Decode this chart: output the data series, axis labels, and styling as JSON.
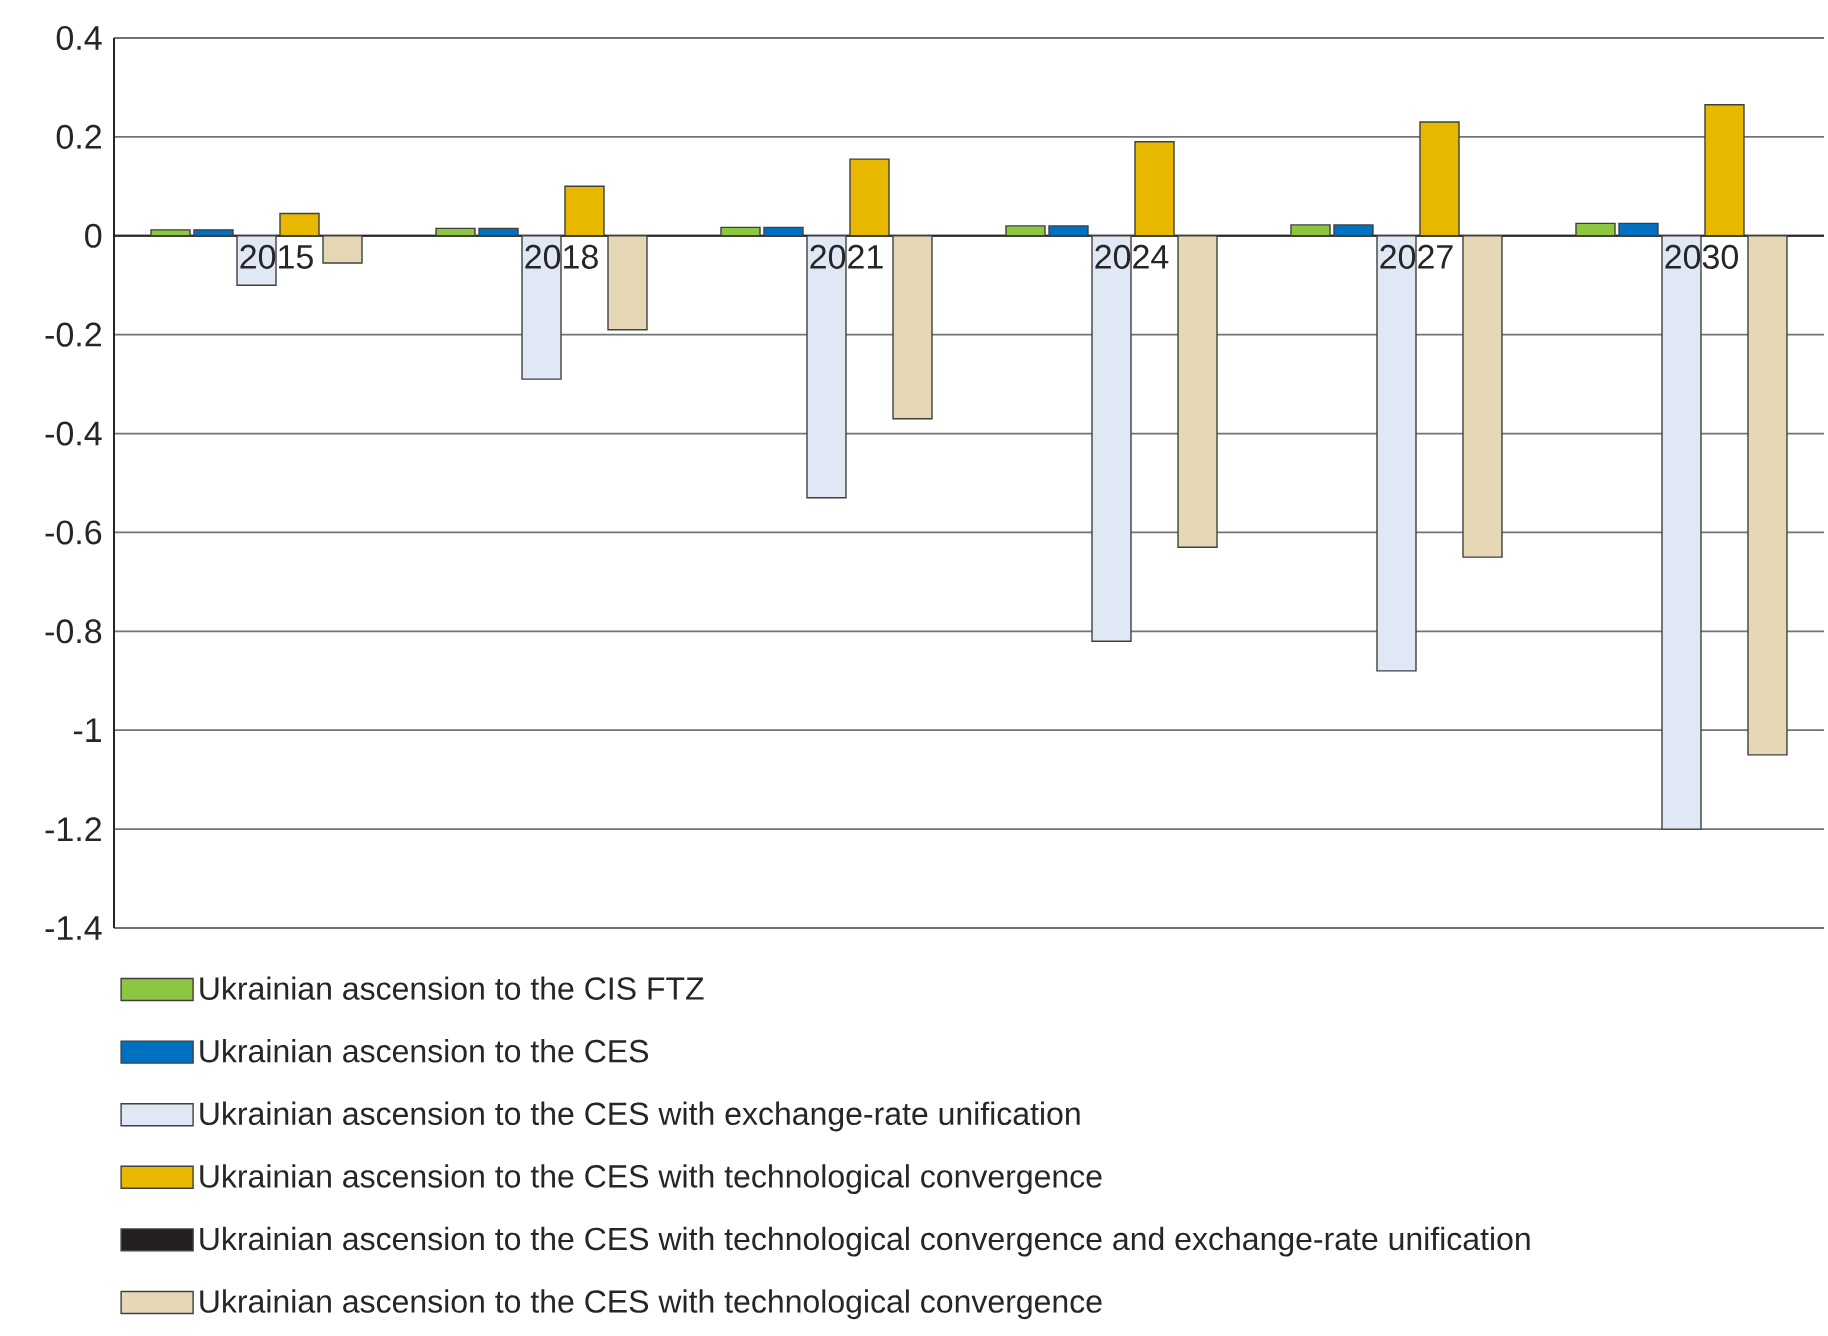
{
  "chart_data": {
    "type": "bar",
    "categories": [
      "2015",
      "2018",
      "2021",
      "2024",
      "2027",
      "2030"
    ],
    "series": [
      {
        "name": "Ukrainian ascension to the CIS FTZ",
        "color": "#8dc63f",
        "values": [
          0.012,
          0.015,
          0.017,
          0.02,
          0.022,
          0.025
        ]
      },
      {
        "name": "Ukrainian ascension to the CES",
        "color": "#0070c0",
        "values": [
          0.012,
          0.015,
          0.017,
          0.02,
          0.022,
          0.025
        ]
      },
      {
        "name": "Ukrainian ascension to the CES with exchange-rate unification",
        "color": "#e0e8f5",
        "values": [
          -0.1,
          -0.29,
          -0.53,
          -0.82,
          -0.88,
          -1.2
        ]
      },
      {
        "name": "Ukrainian ascension to the CES with technological convergence",
        "color": "#e8b800",
        "values": [
          0.045,
          0.1,
          0.155,
          0.19,
          0.23,
          0.265
        ]
      },
      {
        "name": "Ukrainian ascension to the CES with technological convergence and exchange-rate unification",
        "color": "#231f20",
        "values": [
          null,
          null,
          null,
          null,
          null,
          null
        ]
      },
      {
        "name": "Ukrainian ascension to the CES with technological convergence",
        "color": "#e6d8b4",
        "values": [
          -0.055,
          -0.19,
          -0.37,
          -0.63,
          -0.65,
          -1.05
        ]
      }
    ],
    "ylim": [
      -1.4,
      0.4
    ],
    "yticks": [
      -1.4,
      -1.2,
      -1,
      -0.8,
      -0.6,
      -0.4,
      -0.2,
      0,
      0.2,
      0.4
    ],
    "grid": "y",
    "legend": "bottom"
  }
}
